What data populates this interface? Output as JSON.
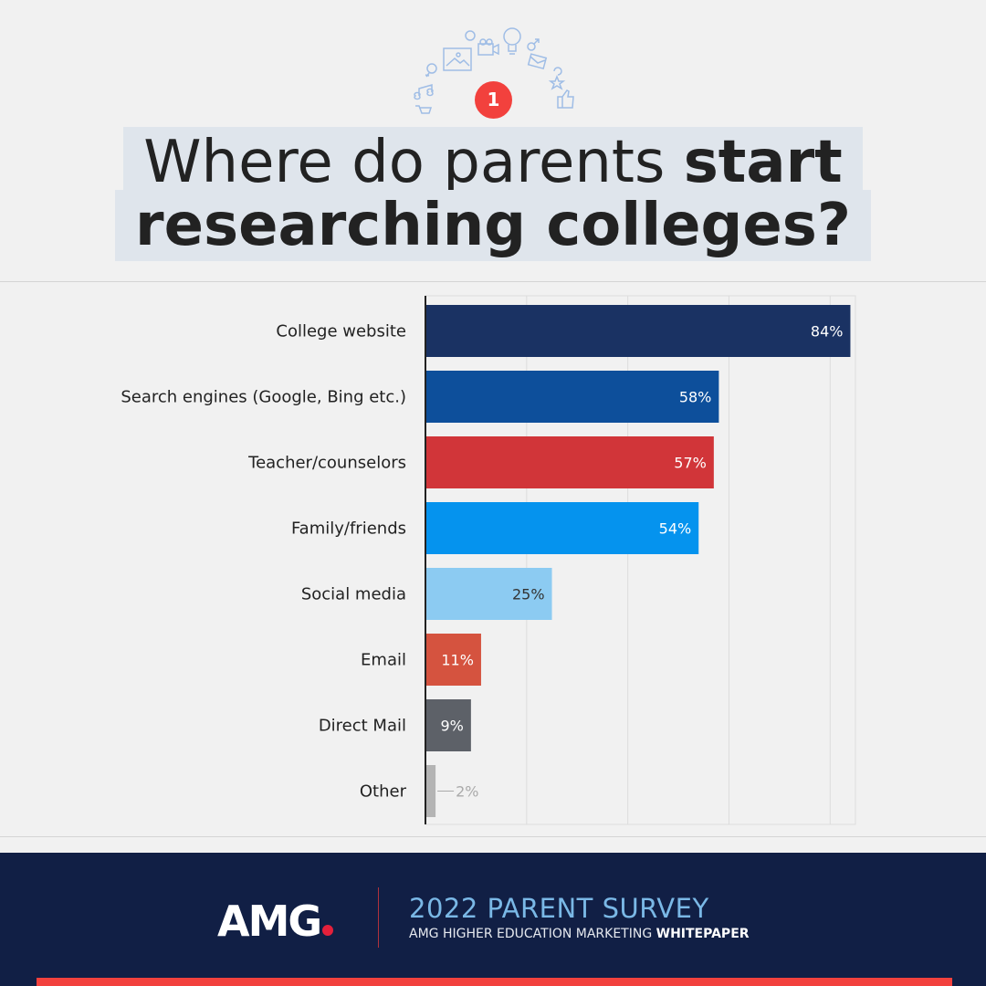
{
  "badge": "1",
  "title": {
    "line1_normal": "Where do parents ",
    "line1_bold": "start",
    "line2_bold": "researching colleges?"
  },
  "footer": {
    "logo": "AMG",
    "survey_title": "2022 PARENT SURVEY",
    "subtitle_normal": "AMG HIGHER EDUCATION MARKETING ",
    "subtitle_bold": "WHITEPAPER"
  },
  "chart_data": {
    "type": "bar",
    "orientation": "horizontal",
    "title": "Where do parents start researching colleges?",
    "xlabel": "",
    "ylabel": "",
    "xlim": [
      0,
      85
    ],
    "grid": true,
    "categories": [
      "College website",
      "Search engines (Google, Bing etc.)",
      "Teacher/counselors",
      "Family/friends",
      "Social media",
      "Email",
      "Direct Mail",
      "Other"
    ],
    "values": [
      84,
      58,
      57,
      54,
      25,
      11,
      9,
      2
    ],
    "labels": [
      "84%",
      "58%",
      "57%",
      "54%",
      "25%",
      "11%",
      "9%",
      "2%"
    ],
    "colors": [
      "#1a3263",
      "#0d4f9b",
      "#d13539",
      "#0593ee",
      "#8ccbf2",
      "#d5533f",
      "#5d6168",
      "#b4b4b4"
    ],
    "label_colors": [
      "#ffffff",
      "#ffffff",
      "#ffffff",
      "#ffffff",
      "#333333",
      "#ffffff",
      "#ffffff",
      "#aaaaaa"
    ]
  }
}
